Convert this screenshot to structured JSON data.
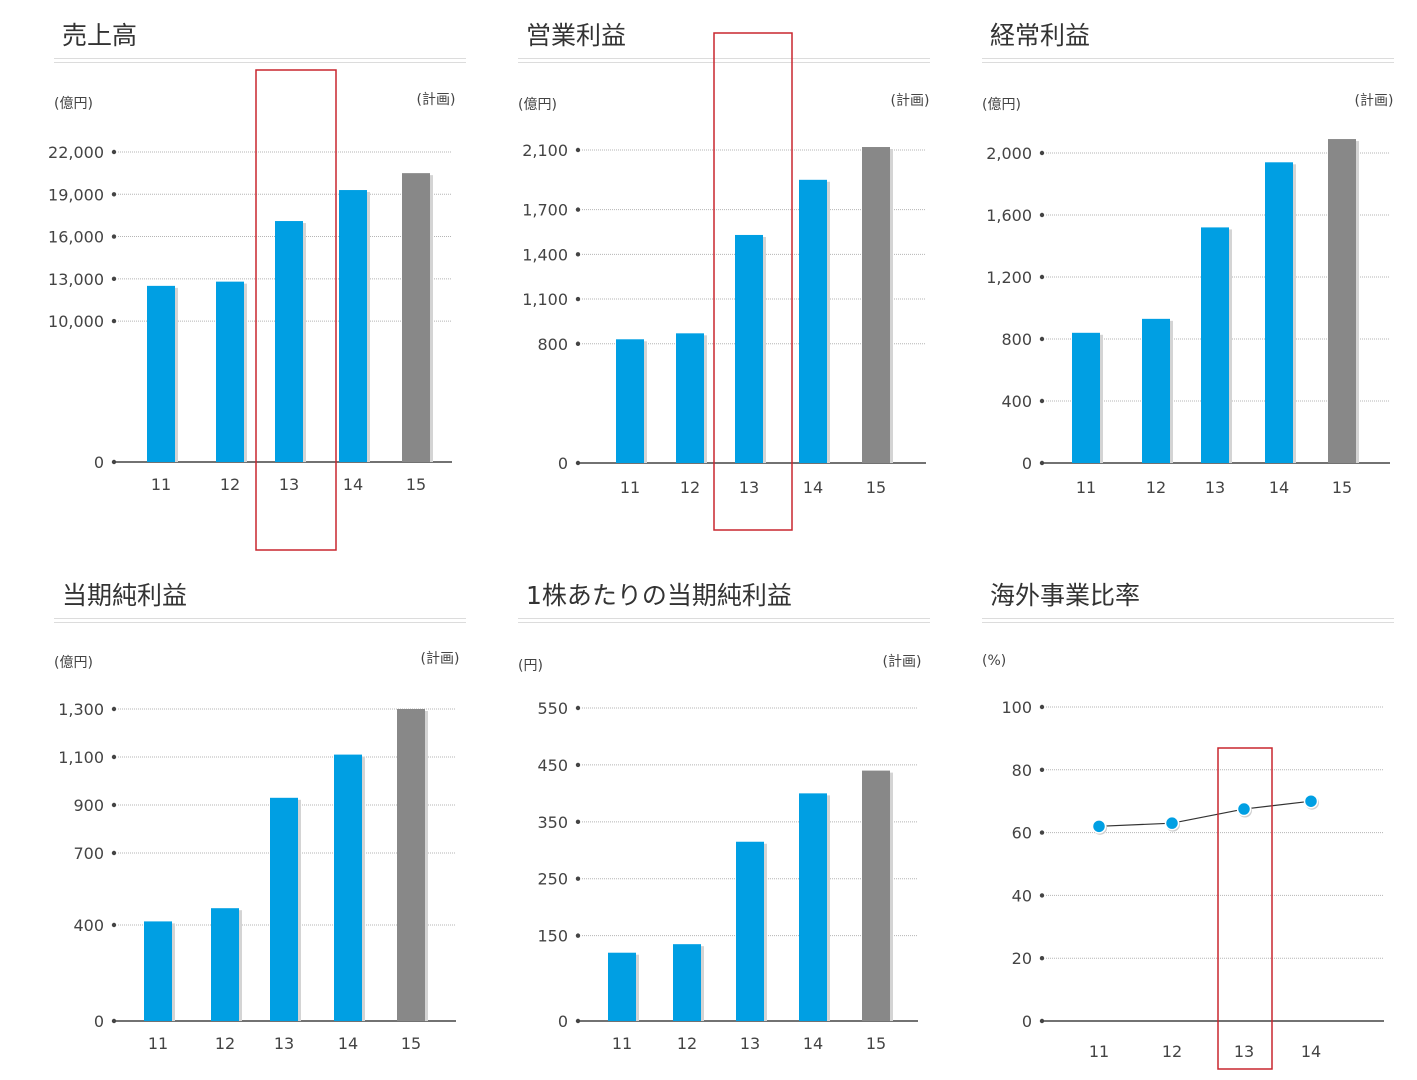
{
  "colors": {
    "actual": "#009fe3",
    "plan": "#888888",
    "grid": "#b5b5b5",
    "axis": "#444444",
    "highlight": "#c8262f",
    "line": "#333333"
  },
  "chart_data": [
    {
      "type": "bar",
      "title": "売上高",
      "unit_label": "(億円)",
      "plan_label": "(計画)",
      "categories": [
        "11",
        "12",
        "13",
        "14",
        "15"
      ],
      "values": [
        12500,
        12800,
        17100,
        19300,
        20500
      ],
      "plan_index": 4,
      "yticks": [
        0,
        10000,
        13000,
        16000,
        19000,
        22000
      ],
      "ytick_labels": [
        "0",
        "10,000",
        "13,000",
        "16,000",
        "19,000",
        "22,000"
      ],
      "highlight": "13"
    },
    {
      "type": "bar",
      "title": "営業利益",
      "unit_label": "(億円)",
      "plan_label": "(計画)",
      "categories": [
        "11",
        "12",
        "13",
        "14",
        "15"
      ],
      "values": [
        830,
        870,
        1530,
        1900,
        2120
      ],
      "plan_index": 4,
      "yticks": [
        0,
        800,
        1100,
        1400,
        1700,
        2100
      ],
      "ytick_labels": [
        "0",
        "800",
        "1,100",
        "1,400",
        "1,700",
        "2,100"
      ],
      "highlight": "13"
    },
    {
      "type": "bar",
      "title": "経常利益",
      "unit_label": "(億円)",
      "plan_label": "(計画)",
      "categories": [
        "11",
        "12",
        "13",
        "14",
        "15"
      ],
      "values": [
        840,
        930,
        1520,
        1940,
        2090
      ],
      "plan_index": 4,
      "yticks": [
        0,
        400,
        800,
        1200,
        1600,
        2000
      ],
      "ytick_labels": [
        "0",
        "400",
        "800",
        "1,200",
        "1,600",
        "2,000"
      ],
      "highlight": null
    },
    {
      "type": "bar",
      "title": "当期純利益",
      "unit_label": "(億円)",
      "plan_label": "(計画)",
      "categories": [
        "11",
        "12",
        "13",
        "14",
        "15"
      ],
      "values": [
        415,
        470,
        930,
        1110,
        1300
      ],
      "plan_index": 4,
      "yticks": [
        0,
        400,
        700,
        900,
        1100,
        1300
      ],
      "ytick_labels": [
        "0",
        "400",
        "700",
        "900",
        "1,100",
        "1,300"
      ],
      "highlight": null
    },
    {
      "type": "bar",
      "title": "1株あたりの当期純利益",
      "unit_label": "(円)",
      "plan_label": "(計画)",
      "categories": [
        "11",
        "12",
        "13",
        "14",
        "15"
      ],
      "values": [
        120,
        135,
        315,
        400,
        440
      ],
      "plan_index": 4,
      "yticks": [
        0,
        150,
        250,
        350,
        450,
        550
      ],
      "ytick_labels": [
        "0",
        "150",
        "250",
        "350",
        "450",
        "550"
      ],
      "highlight": null
    },
    {
      "type": "line",
      "title": "海外事業比率",
      "unit_label": "(%)",
      "plan_label": "",
      "categories": [
        "11",
        "12",
        "13",
        "14"
      ],
      "values": [
        62,
        63,
        67.5,
        70
      ],
      "plan_index": null,
      "yticks": [
        0,
        20,
        40,
        60,
        80,
        100
      ],
      "ytick_labels": [
        "0",
        "20",
        "40",
        "60",
        "80",
        "100"
      ],
      "highlight": "13"
    }
  ]
}
